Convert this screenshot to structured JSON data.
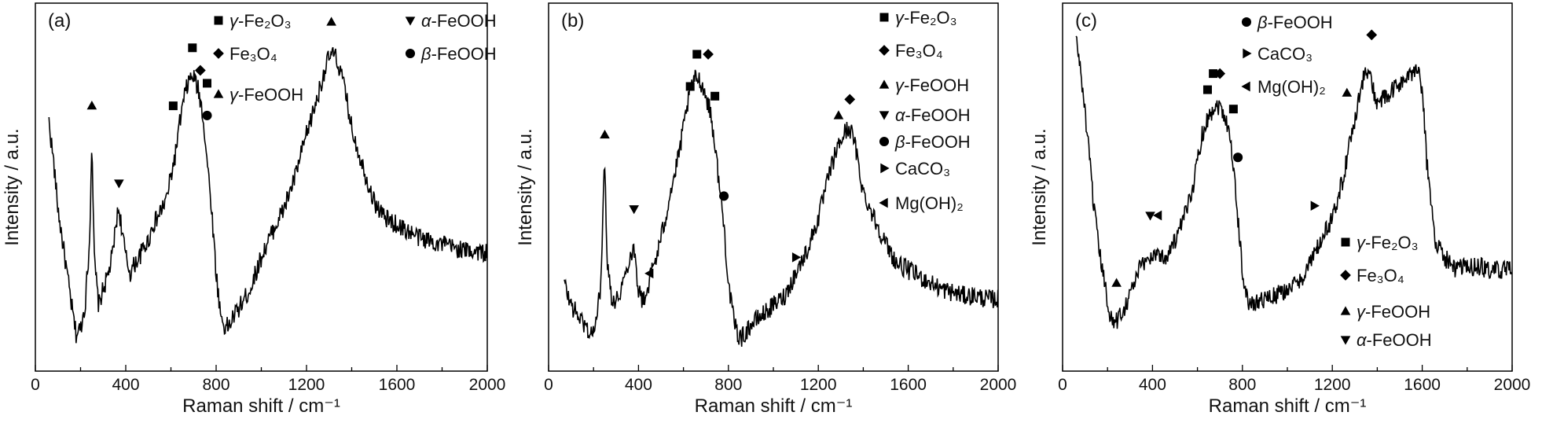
{
  "figure": {
    "panels": [
      {
        "label": "(a)",
        "xlabel": "Raman shift / cm⁻¹",
        "ylabel": "Intensity / a.u.",
        "legend": [
          {
            "symbol": "square",
            "prefix": "γ",
            "text": "-Fe₂O₃"
          },
          {
            "symbol": "diamond",
            "prefix": "",
            "text": "Fe₃O₄"
          },
          {
            "symbol": "triangle-up",
            "prefix": "γ",
            "text": "-FeOOH"
          },
          {
            "symbol": "triangle-down",
            "prefix": "α",
            "text": "-FeOOH"
          },
          {
            "symbol": "circle",
            "prefix": "β",
            "text": "-FeOOH"
          }
        ]
      },
      {
        "label": "(b)",
        "xlabel": "Raman shift / cm⁻¹",
        "ylabel": "Intensity / a.u.",
        "legend": [
          {
            "symbol": "square",
            "prefix": "γ",
            "text": "-Fe₂O₃"
          },
          {
            "symbol": "diamond",
            "prefix": "",
            "text": "Fe₃O₄"
          },
          {
            "symbol": "triangle-up",
            "prefix": "γ",
            "text": "-FeOOH"
          },
          {
            "symbol": "triangle-down",
            "prefix": "α",
            "text": "-FeOOH"
          },
          {
            "symbol": "circle",
            "prefix": "β",
            "text": "-FeOOH"
          },
          {
            "symbol": "triangle-right",
            "prefix": "",
            "text": "CaCO₃"
          },
          {
            "symbol": "triangle-left",
            "prefix": "",
            "text": "Mg(OH)₂"
          }
        ]
      },
      {
        "label": "(c)",
        "xlabel": "Raman shift / cm⁻¹",
        "ylabel": "Intensity / a.u.",
        "legend": [
          {
            "symbol": "circle",
            "prefix": "β",
            "text": "-FeOOH"
          },
          {
            "symbol": "triangle-right",
            "prefix": "",
            "text": "CaCO₃"
          },
          {
            "symbol": "triangle-left",
            "prefix": "",
            "text": "Mg(OH)₂"
          },
          {
            "symbol": "square",
            "prefix": "γ",
            "text": "-Fe₂O₃"
          },
          {
            "symbol": "diamond",
            "prefix": "",
            "text": "Fe₃O₄"
          },
          {
            "symbol": "triangle-up",
            "prefix": "γ",
            "text": "-FeOOH"
          },
          {
            "symbol": "triangle-down",
            "prefix": "α",
            "text": "-FeOOH"
          }
        ]
      }
    ]
  },
  "chart_data": [
    {
      "type": "line",
      "title": "",
      "xlabel": "Raman shift / cm⁻¹",
      "ylabel": "Intensity / a.u.",
      "xlim": [
        0,
        2000
      ],
      "ylim": [
        0,
        1
      ],
      "xticks": [
        0,
        400,
        800,
        1200,
        1600,
        2000
      ],
      "grid": false,
      "series": [
        {
          "x": [
            60,
            80,
            100,
            120,
            140,
            160,
            180,
            200,
            220,
            240,
            250,
            260,
            280,
            300,
            320,
            340,
            360,
            370,
            380,
            400,
            420,
            440,
            460,
            480,
            500,
            520,
            540,
            560,
            580,
            600,
            620,
            640,
            660,
            680,
            700,
            720,
            740,
            760,
            780,
            800,
            820,
            840,
            860,
            880,
            900,
            950,
            1000,
            1050,
            1100,
            1150,
            1200,
            1250,
            1280,
            1300,
            1320,
            1340,
            1360,
            1380,
            1400,
            1450,
            1500,
            1550,
            1600,
            1650,
            1700,
            1750,
            1800,
            1850,
            1900,
            1950,
            2000
          ],
          "y": [
            0.72,
            0.6,
            0.45,
            0.35,
            0.25,
            0.15,
            0.06,
            0.08,
            0.15,
            0.35,
            0.68,
            0.3,
            0.15,
            0.2,
            0.24,
            0.3,
            0.42,
            0.45,
            0.4,
            0.3,
            0.25,
            0.28,
            0.3,
            0.33,
            0.35,
            0.4,
            0.42,
            0.45,
            0.48,
            0.55,
            0.62,
            0.72,
            0.8,
            0.85,
            0.86,
            0.82,
            0.75,
            0.6,
            0.45,
            0.25,
            0.12,
            0.08,
            0.09,
            0.12,
            0.14,
            0.2,
            0.3,
            0.38,
            0.45,
            0.55,
            0.68,
            0.8,
            0.88,
            0.92,
            0.93,
            0.9,
            0.85,
            0.78,
            0.7,
            0.58,
            0.47,
            0.42,
            0.4,
            0.38,
            0.36,
            0.35,
            0.34,
            0.33,
            0.32,
            0.32,
            0.31
          ]
        }
      ],
      "markers": [
        {
          "symbol": "triangle-up",
          "x": 250,
          "y": 0.74
        },
        {
          "symbol": "triangle-down",
          "x": 370,
          "y": 0.5
        },
        {
          "symbol": "square",
          "x": 610,
          "y": 0.74
        },
        {
          "symbol": "square",
          "x": 695,
          "y": 0.92
        },
        {
          "symbol": "diamond",
          "x": 730,
          "y": 0.85
        },
        {
          "symbol": "square",
          "x": 760,
          "y": 0.81
        },
        {
          "symbol": "circle",
          "x": 760,
          "y": 0.71
        },
        {
          "symbol": "triangle-up",
          "x": 1310,
          "y": 1.0
        }
      ]
    },
    {
      "type": "line",
      "title": "",
      "xlabel": "Raman shift / cm⁻¹",
      "ylabel": "Intensity / a.u.",
      "xlim": [
        0,
        2000
      ],
      "ylim": [
        0,
        1
      ],
      "xticks": [
        0,
        400,
        800,
        1200,
        1600,
        2000
      ],
      "grid": false,
      "series": [
        {
          "x": [
            70,
            90,
            110,
            130,
            150,
            170,
            190,
            210,
            230,
            240,
            250,
            260,
            280,
            300,
            320,
            340,
            360,
            380,
            400,
            420,
            440,
            460,
            480,
            500,
            520,
            540,
            560,
            580,
            600,
            620,
            640,
            660,
            680,
            700,
            720,
            740,
            760,
            780,
            800,
            820,
            840,
            860,
            880,
            900,
            950,
            1000,
            1050,
            1100,
            1150,
            1200,
            1250,
            1280,
            1300,
            1320,
            1340,
            1360,
            1380,
            1400,
            1450,
            1500,
            1550,
            1600,
            1650,
            1700,
            1750,
            1800,
            1850,
            1900,
            1950,
            2000
          ],
          "y": [
            0.22,
            0.17,
            0.14,
            0.12,
            0.1,
            0.08,
            0.06,
            0.09,
            0.2,
            0.4,
            0.6,
            0.3,
            0.18,
            0.16,
            0.2,
            0.24,
            0.3,
            0.33,
            0.2,
            0.16,
            0.2,
            0.26,
            0.3,
            0.36,
            0.42,
            0.5,
            0.55,
            0.62,
            0.7,
            0.78,
            0.84,
            0.86,
            0.84,
            0.8,
            0.75,
            0.65,
            0.52,
            0.4,
            0.22,
            0.12,
            0.06,
            0.05,
            0.07,
            0.09,
            0.12,
            0.15,
            0.18,
            0.25,
            0.32,
            0.42,
            0.56,
            0.63,
            0.66,
            0.69,
            0.7,
            0.66,
            0.58,
            0.5,
            0.42,
            0.34,
            0.28,
            0.26,
            0.24,
            0.22,
            0.2,
            0.19,
            0.18,
            0.18,
            0.17,
            0.17
          ]
        }
      ],
      "markers": [
        {
          "symbol": "triangle-up",
          "x": 250,
          "y": 0.65
        },
        {
          "symbol": "triangle-down",
          "x": 380,
          "y": 0.42
        },
        {
          "symbol": "triangle-left",
          "x": 450,
          "y": 0.22
        },
        {
          "symbol": "square",
          "x": 630,
          "y": 0.8
        },
        {
          "symbol": "square",
          "x": 660,
          "y": 0.9
        },
        {
          "symbol": "diamond",
          "x": 710,
          "y": 0.9
        },
        {
          "symbol": "square",
          "x": 740,
          "y": 0.77
        },
        {
          "symbol": "circle",
          "x": 780,
          "y": 0.46
        },
        {
          "symbol": "triangle-right",
          "x": 1100,
          "y": 0.27
        },
        {
          "symbol": "triangle-up",
          "x": 1290,
          "y": 0.71
        },
        {
          "symbol": "diamond",
          "x": 1340,
          "y": 0.76
        }
      ]
    },
    {
      "type": "line",
      "title": "",
      "xlabel": "Raman shift / cm⁻¹",
      "ylabel": "Intensity / a.u.",
      "xlim": [
        0,
        2000
      ],
      "ylim": [
        0,
        1
      ],
      "xticks": [
        0,
        400,
        800,
        1200,
        1600,
        2000
      ],
      "grid": false,
      "series": [
        {
          "x": [
            60,
            80,
            100,
            120,
            140,
            160,
            180,
            200,
            220,
            240,
            260,
            280,
            300,
            320,
            340,
            360,
            380,
            400,
            420,
            440,
            460,
            480,
            500,
            520,
            540,
            560,
            580,
            600,
            620,
            640,
            660,
            680,
            700,
            720,
            740,
            760,
            780,
            800,
            820,
            840,
            860,
            880,
            900,
            950,
            1000,
            1050,
            1100,
            1150,
            1200,
            1250,
            1280,
            1300,
            1320,
            1340,
            1360,
            1380,
            1400,
            1450,
            1500,
            1550,
            1580,
            1600,
            1620,
            1640,
            1660,
            1700,
            1750,
            1800,
            1850,
            1900,
            1950,
            2000
          ],
          "y": [
            0.98,
            0.88,
            0.75,
            0.6,
            0.45,
            0.33,
            0.25,
            0.16,
            0.1,
            0.1,
            0.13,
            0.15,
            0.19,
            0.22,
            0.26,
            0.28,
            0.3,
            0.3,
            0.32,
            0.3,
            0.3,
            0.33,
            0.35,
            0.38,
            0.42,
            0.47,
            0.52,
            0.6,
            0.68,
            0.72,
            0.75,
            0.77,
            0.77,
            0.74,
            0.7,
            0.58,
            0.42,
            0.26,
            0.17,
            0.15,
            0.16,
            0.17,
            0.17,
            0.18,
            0.2,
            0.22,
            0.28,
            0.35,
            0.42,
            0.55,
            0.66,
            0.73,
            0.8,
            0.86,
            0.88,
            0.82,
            0.78,
            0.8,
            0.84,
            0.86,
            0.9,
            0.82,
            0.6,
            0.45,
            0.35,
            0.3,
            0.26,
            0.27,
            0.27,
            0.26,
            0.26,
            0.26
          ]
        }
      ],
      "markers": [
        {
          "symbol": "triangle-up",
          "x": 240,
          "y": 0.19
        },
        {
          "symbol": "triangle-down",
          "x": 390,
          "y": 0.4
        },
        {
          "symbol": "triangle-left",
          "x": 425,
          "y": 0.4
        },
        {
          "symbol": "square",
          "x": 645,
          "y": 0.79
        },
        {
          "symbol": "square",
          "x": 670,
          "y": 0.84
        },
        {
          "symbol": "diamond",
          "x": 700,
          "y": 0.84
        },
        {
          "symbol": "square",
          "x": 760,
          "y": 0.73
        },
        {
          "symbol": "circle",
          "x": 780,
          "y": 0.58
        },
        {
          "symbol": "triangle-right",
          "x": 1120,
          "y": 0.43
        },
        {
          "symbol": "triangle-up",
          "x": 1265,
          "y": 0.78
        },
        {
          "symbol": "diamond",
          "x": 1375,
          "y": 0.96
        }
      ]
    }
  ]
}
